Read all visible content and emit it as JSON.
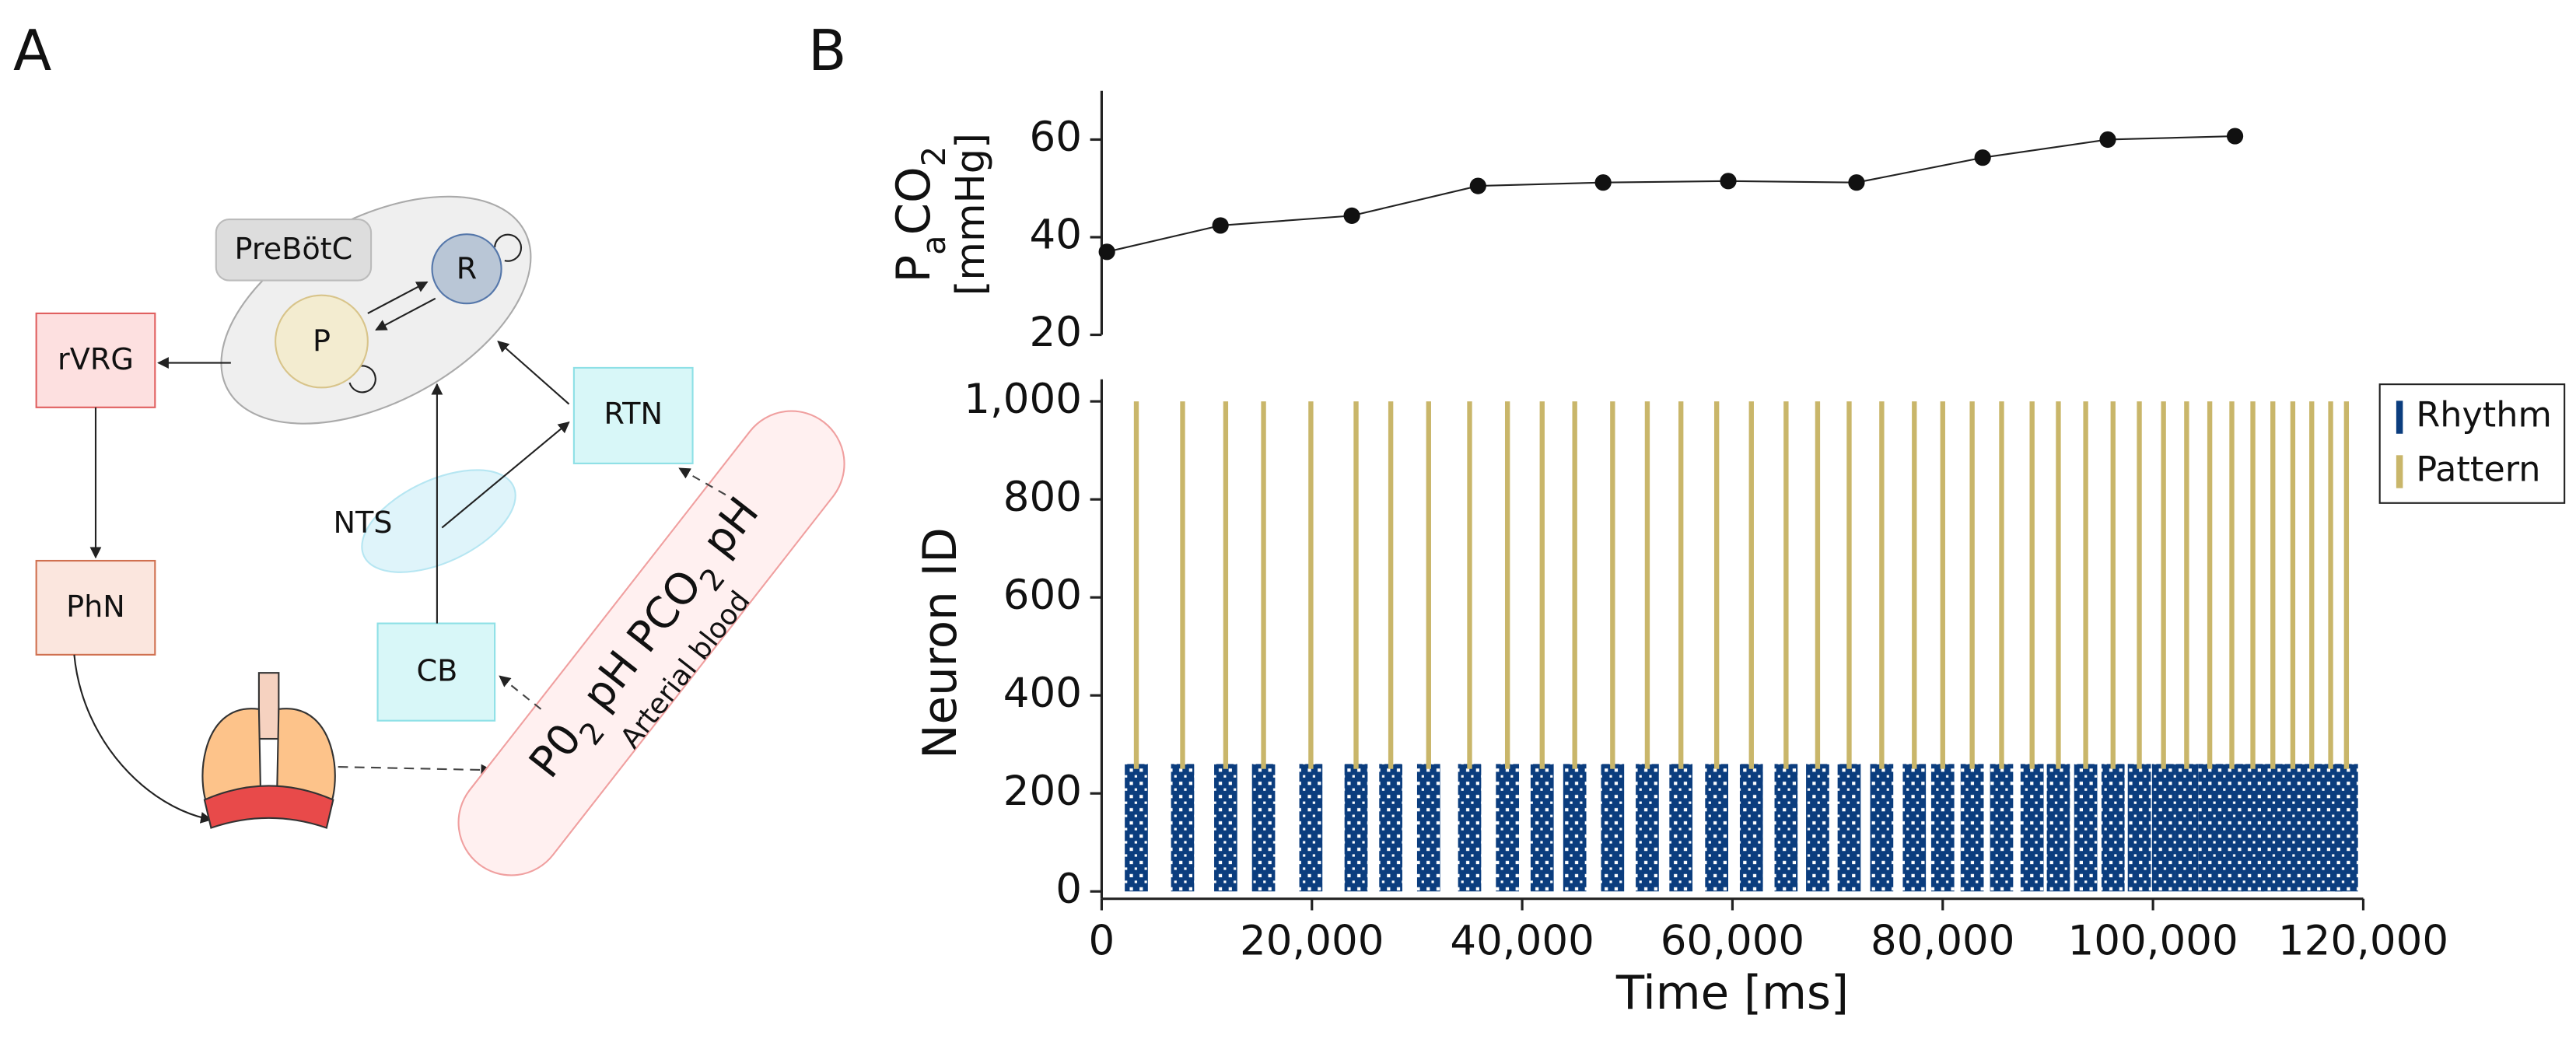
{
  "panel_labels": [
    "A",
    "B"
  ],
  "diagram": {
    "prebotc": "PreBötC",
    "rhythm_node": "R",
    "pattern_node": "P",
    "rvrg": "rVRG",
    "phn": "PhN",
    "rtn": "RTN",
    "nts": "NTS",
    "cb": "CB",
    "blood_gases": [
      {
        "text": "P0"
      },
      {
        "text": "2",
        "sub": true
      },
      {
        "text": " pH  PCO"
      },
      {
        "text": "2",
        "sub": true
      },
      {
        "text": " pH"
      }
    ],
    "blood_label": "Arterial blood"
  },
  "chart_data": [
    {
      "type": "line",
      "ylabel": [
        {
          "text": "P"
        },
        {
          "text": "a",
          "sub": true
        },
        {
          "text": "CO"
        },
        {
          "text": "2",
          "sub": true
        }
      ],
      "ylabel_unit": "[mmHg]",
      "x": [
        500,
        11300,
        23800,
        35800,
        47700,
        59600,
        71800,
        83800,
        95700,
        107800
      ],
      "values": [
        37,
        42.4,
        44.4,
        50.5,
        51.2,
        51.5,
        51.2,
        56.3,
        60,
        60.7
      ],
      "color": "#222222",
      "xlim": [
        0,
        120000
      ],
      "ylim": [
        20,
        70
      ],
      "yticks": [
        20,
        40,
        60
      ]
    },
    {
      "type": "raster",
      "xlabel": "Time [ms]",
      "ylabel": "Neuron ID",
      "burst_times": [
        3300,
        7700,
        11800,
        15400,
        19900,
        24200,
        27500,
        31100,
        35000,
        38600,
        41900,
        45000,
        48600,
        51900,
        55100,
        58500,
        61800,
        65100,
        68100,
        71100,
        74200,
        77300,
        80000,
        82800,
        85600,
        88500,
        91000,
        93600,
        96200,
        98700,
        101000,
        103200,
        105400,
        107500,
        109500,
        111400,
        113300,
        115100,
        116900,
        118400
      ],
      "series": [
        {
          "name": "Rhythm",
          "color": "#0b3d7e",
          "neurons": [
            0,
            260
          ]
        },
        {
          "name": "Pattern",
          "color": "#c9b66a",
          "neurons": [
            250,
            1000
          ]
        }
      ],
      "xlim": [
        0,
        120000
      ],
      "ylim": [
        -15,
        1045
      ],
      "xticks": [
        0,
        {
          "value": 20000,
          "label": "20,000"
        },
        {
          "value": 40000,
          "label": "40,000"
        },
        {
          "value": 60000,
          "label": "60,000"
        },
        {
          "value": 80000,
          "label": "80,000"
        },
        {
          "value": 100000,
          "label": "100,000"
        },
        {
          "value": 120000,
          "label": "120,000"
        }
      ],
      "yticks": [
        0,
        200,
        400,
        600,
        800,
        {
          "value": 1000,
          "label": "1,000"
        }
      ],
      "legend": "upper right"
    }
  ]
}
